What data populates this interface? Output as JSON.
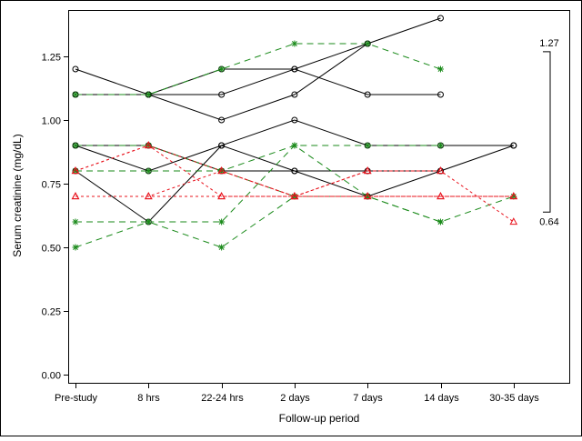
{
  "chart_data": {
    "type": "line",
    "title": "",
    "xlabel": "Follow-up period",
    "ylabel": "Serum creatinine (mg/dL)",
    "categories": [
      "Pre-study",
      "8 hrs",
      "22-24 hrs",
      "2 days",
      "7 days",
      "14 days",
      "30-35 days"
    ],
    "ylim": [
      0,
      1.4
    ],
    "yticks": [
      "0.00",
      "0.25",
      "0.50",
      "0.75",
      "1.00",
      "1.25"
    ],
    "grid": false,
    "reference_range": {
      "low": 0.64,
      "high": 1.27,
      "low_label": "0.64",
      "high_label": "1.27"
    },
    "colors": {
      "black": "#000000",
      "green": "#1a8a1a",
      "red": "#e8141e"
    },
    "series": [
      {
        "style": "black",
        "marker": "circle",
        "values": [
          1.2,
          1.1,
          1.1,
          1.2,
          1.1,
          1.1,
          null
        ]
      },
      {
        "style": "black",
        "marker": "circle",
        "values": [
          1.1,
          1.1,
          1.2,
          1.2,
          1.3,
          1.4,
          null
        ]
      },
      {
        "style": "black",
        "marker": "circle",
        "values": [
          1.1,
          1.1,
          1.0,
          1.1,
          1.3,
          null,
          null
        ]
      },
      {
        "style": "black",
        "marker": "circle",
        "values": [
          0.9,
          0.8,
          0.9,
          1.0,
          0.9,
          0.9,
          0.9
        ]
      },
      {
        "style": "black",
        "marker": "circle",
        "values": [
          0.9,
          0.9,
          0.8,
          0.8,
          0.8,
          0.8,
          null
        ]
      },
      {
        "style": "black",
        "marker": "circle",
        "values": [
          0.8,
          0.6,
          0.9,
          0.8,
          0.7,
          0.8,
          0.9
        ]
      },
      {
        "style": "green",
        "marker": "star",
        "values": [
          1.1,
          1.1,
          1.2,
          1.3,
          1.3,
          1.2,
          null
        ]
      },
      {
        "style": "green",
        "marker": "star",
        "values": [
          0.8,
          0.8,
          0.8,
          0.9,
          0.9,
          0.9,
          null
        ]
      },
      {
        "style": "green",
        "marker": "star",
        "values": [
          0.9,
          0.9,
          0.8,
          0.7,
          0.7,
          0.6,
          0.7
        ]
      },
      {
        "style": "green",
        "marker": "star",
        "values": [
          0.6,
          0.6,
          0.5,
          0.7,
          0.7,
          null,
          null
        ]
      },
      {
        "style": "green",
        "marker": "star",
        "values": [
          0.5,
          0.6,
          0.6,
          0.9,
          0.7,
          0.6,
          null
        ]
      },
      {
        "style": "red",
        "marker": "triangle",
        "values": [
          0.8,
          0.9,
          0.8,
          0.7,
          0.7,
          0.7,
          0.7
        ]
      },
      {
        "style": "red",
        "marker": "triangle",
        "values": [
          0.7,
          0.7,
          0.7,
          0.7,
          0.7,
          0.7,
          0.7
        ]
      },
      {
        "style": "red",
        "marker": "triangle",
        "values": [
          0.8,
          0.9,
          0.7,
          0.7,
          0.8,
          0.8,
          0.6
        ]
      },
      {
        "style": "red",
        "marker": "triangle",
        "values": [
          0.7,
          0.7,
          0.8,
          0.7,
          0.8,
          0.8,
          null
        ]
      }
    ]
  }
}
